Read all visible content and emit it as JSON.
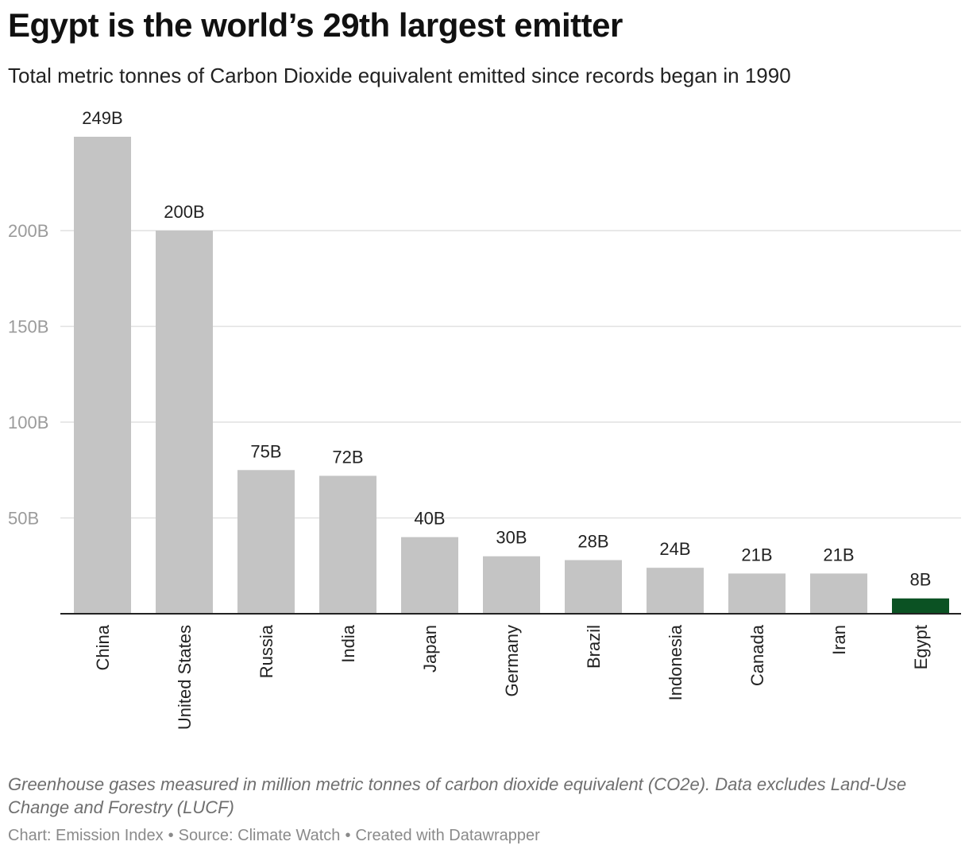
{
  "header": {
    "title": "Egypt is the world’s 29th largest emitter",
    "subtitle": "Total metric tonnes of Carbon Dioxide equivalent emitted since records began in 1990"
  },
  "chart_data": {
    "type": "bar",
    "categories": [
      "China",
      "United States",
      "Russia",
      "India",
      "Japan",
      "Germany",
      "Brazil",
      "Indonesia",
      "Canada",
      "Iran",
      "Egypt"
    ],
    "values": [
      249,
      200,
      75,
      72,
      40,
      30,
      28,
      24,
      21,
      21,
      8
    ],
    "value_labels": [
      "249B",
      "200B",
      "75B",
      "72B",
      "40B",
      "30B",
      "28B",
      "24B",
      "21B",
      "21B",
      "8B"
    ],
    "yticks": [
      50,
      100,
      150,
      200
    ],
    "ytick_labels": [
      "50B",
      "100B",
      "150B",
      "200B"
    ],
    "ylim": [
      0,
      249
    ],
    "grid": true,
    "colors": {
      "default": "#c4c4c4",
      "highlight": "#0b5223"
    },
    "highlight_category": "Egypt"
  },
  "footer": {
    "notes": "Greenhouse gases measured in million metric tonnes of carbon dioxide equivalent (CO2e). Data excludes Land-Use Change and Forestry (LUCF)",
    "chart_credit": "Chart: Emission Index",
    "source": "Source: Climate Watch",
    "created_with": "Created with Datawrapper",
    "separator": "•"
  }
}
